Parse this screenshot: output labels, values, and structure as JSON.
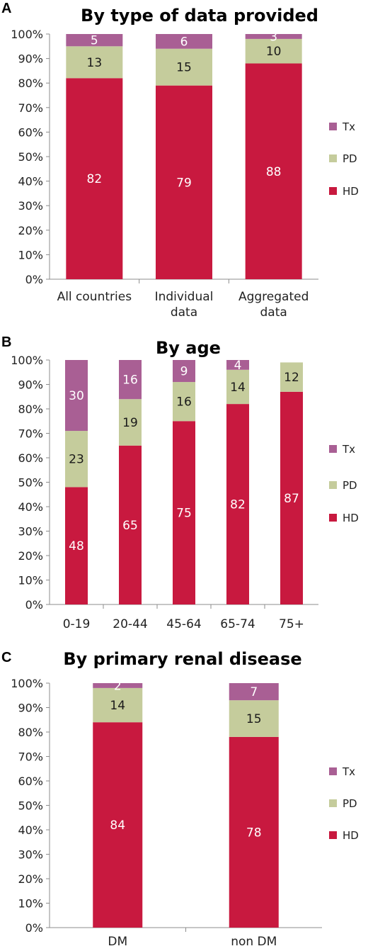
{
  "chart_data": [
    {
      "type": "bar",
      "stacked": true,
      "panel_letter": "A",
      "title": "By type of data provided",
      "categories": [
        [
          "All countries"
        ],
        [
          "Individual",
          "data"
        ],
        [
          "Aggregated",
          "data"
        ]
      ],
      "series": [
        {
          "name": "HD",
          "values": [
            82,
            79,
            88
          ]
        },
        {
          "name": "PD",
          "values": [
            13,
            15,
            10
          ]
        },
        {
          "name": "Tx",
          "values": [
            5,
            6,
            3
          ]
        }
      ],
      "ylim": [
        0,
        100
      ],
      "yticks": [
        "0%",
        "10%",
        "20%",
        "30%",
        "40%",
        "50%",
        "60%",
        "70%",
        "80%",
        "90%",
        "100%"
      ],
      "legend": "right",
      "grid": false
    },
    {
      "type": "bar",
      "stacked": true,
      "panel_letter": "B",
      "title": "By age",
      "categories": [
        [
          "0-19"
        ],
        [
          "20-44"
        ],
        [
          "45-64"
        ],
        [
          "65-74"
        ],
        [
          "75+"
        ]
      ],
      "series": [
        {
          "name": "HD",
          "values": [
            48,
            65,
            75,
            82,
            87
          ]
        },
        {
          "name": "PD",
          "values": [
            23,
            19,
            16,
            14,
            12
          ]
        },
        {
          "name": "Tx",
          "values": [
            30,
            16,
            9,
            4,
            null
          ]
        }
      ],
      "ylim": [
        0,
        100
      ],
      "yticks": [
        "0%",
        "10%",
        "20%",
        "30%",
        "40%",
        "50%",
        "60%",
        "70%",
        "80%",
        "90%",
        "100%"
      ],
      "legend": "right",
      "grid": false
    },
    {
      "type": "bar",
      "stacked": true,
      "panel_letter": "C",
      "title": "By primary renal disease",
      "categories": [
        [
          "DM"
        ],
        [
          "non DM"
        ]
      ],
      "series": [
        {
          "name": "HD",
          "values": [
            84,
            78
          ]
        },
        {
          "name": "PD",
          "values": [
            14,
            15
          ]
        },
        {
          "name": "Tx",
          "values": [
            2,
            7
          ]
        }
      ],
      "ylim": [
        0,
        100
      ],
      "yticks": [
        "0%",
        "10%",
        "20%",
        "30%",
        "40%",
        "50%",
        "60%",
        "70%",
        "80%",
        "90%",
        "100%"
      ],
      "legend": "right",
      "grid": false
    }
  ],
  "colors": {
    "HD": "#c8193f",
    "PD": "#c5cc9c",
    "Tx": "#a95f94",
    "axis": "#8c8c8c"
  },
  "label_colors": {
    "HD": "#ffffff",
    "PD": "#1a1a1a",
    "Tx": "#ffffff"
  }
}
